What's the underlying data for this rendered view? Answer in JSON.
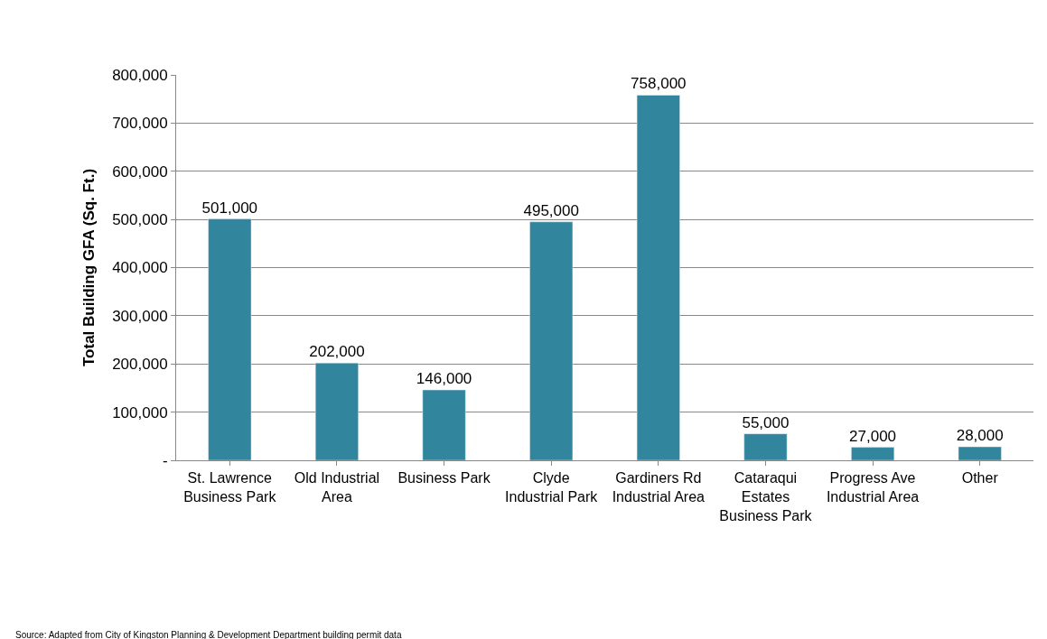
{
  "chart_data": {
    "type": "bar",
    "ylabel": "Total Building GFA (Sq. Ft.)",
    "categories": [
      "St. Lawrence\nBusiness Park",
      "Old Industrial\nArea",
      "Business Park",
      "Clyde\nIndustrial Park",
      "Gardiners Rd\nIndustrial Area",
      "Cataraqui\nEstates\nBusiness Park",
      "Progress Ave\nIndustrial Area",
      "Other"
    ],
    "values": [
      501000,
      202000,
      146000,
      495000,
      758000,
      55000,
      27000,
      28000
    ],
    "value_labels": [
      "501,000",
      "202,000",
      "146,000",
      "495,000",
      "758,000",
      "55,000",
      "27,000",
      "28,000"
    ],
    "color": "#31859c",
    "grid": "y",
    "ylim": [
      0,
      800000
    ],
    "yticks": [
      {
        "value": 0,
        "label": "-"
      },
      {
        "value": 100000,
        "label": "100,000"
      },
      {
        "value": 200000,
        "label": "200,000"
      },
      {
        "value": 300000,
        "label": "300,000"
      },
      {
        "value": 400000,
        "label": "400,000"
      },
      {
        "value": 500000,
        "label": "500,000"
      },
      {
        "value": 600000,
        "label": "600,000"
      },
      {
        "value": 700000,
        "label": "700,000"
      },
      {
        "value": 800000,
        "label": "800,000"
      }
    ],
    "annotations": [
      "Source: Adapted from City of Kingston Planning & Development Department building permit data"
    ]
  }
}
